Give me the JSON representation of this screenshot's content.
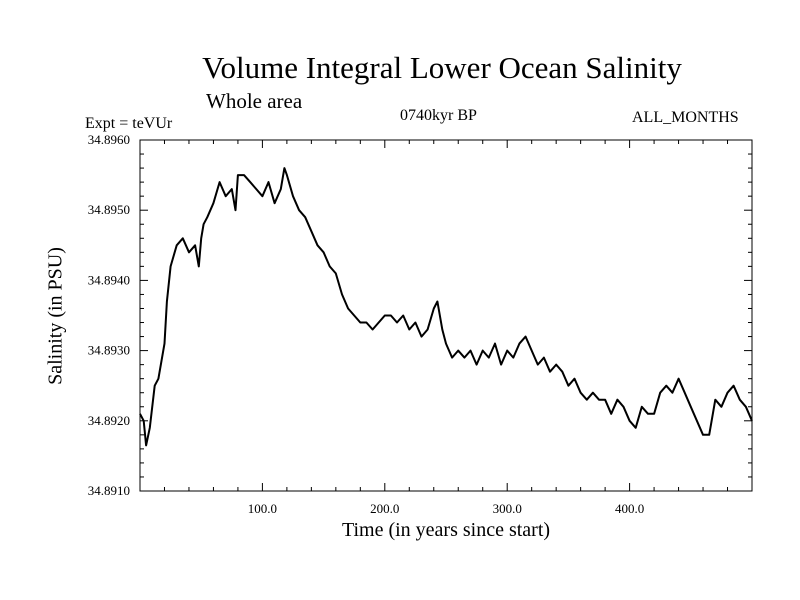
{
  "chart_data": {
    "type": "line",
    "title": "Volume Integral Lower Ocean Salinity",
    "subtitle": "Whole area",
    "annotations": {
      "experiment": "Expt = teVUr",
      "period": "0740kyr BP",
      "months": "ALL_MONTHS"
    },
    "xlabel": "Time (in years since start)",
    "ylabel": "Salinity (in PSU)",
    "xlim": [
      0,
      500
    ],
    "ylim": [
      34.891,
      34.896
    ],
    "xticks": [
      100,
      200,
      300,
      400
    ],
    "xtick_labels": [
      "100.0",
      "200.0",
      "300.0",
      "400.0"
    ],
    "yticks": [
      34.891,
      34.892,
      34.893,
      34.894,
      34.895,
      34.896
    ],
    "ytick_labels": [
      "34.8910",
      "34.8920",
      "34.8930",
      "34.8940",
      "34.8950",
      "34.8960"
    ],
    "grid": false,
    "series": [
      {
        "x": [
          0,
          3,
          5,
          8,
          12,
          15,
          20,
          22,
          25,
          30,
          35,
          40,
          45,
          48,
          50,
          52,
          55,
          60,
          65,
          70,
          75,
          78,
          80,
          85,
          90,
          95,
          100,
          105,
          110,
          115,
          118,
          120,
          125,
          130,
          135,
          140,
          145,
          150,
          155,
          160,
          165,
          170,
          175,
          180,
          185,
          190,
          195,
          200,
          205,
          210,
          215,
          220,
          225,
          230,
          235,
          240,
          243,
          247,
          250,
          255,
          260,
          265,
          270,
          275,
          280,
          285,
          290,
          295,
          300,
          305,
          310,
          315,
          320,
          325,
          330,
          335,
          340,
          345,
          350,
          355,
          360,
          365,
          370,
          375,
          380,
          385,
          390,
          395,
          400,
          405,
          410,
          415,
          420,
          425,
          430,
          435,
          440,
          445,
          450,
          455,
          460,
          465,
          470,
          475,
          480,
          485,
          490,
          495,
          500
        ],
        "y": [
          34.8921,
          34.892,
          34.89165,
          34.8919,
          34.8925,
          34.8926,
          34.8931,
          34.8937,
          34.8942,
          34.8945,
          34.8946,
          34.8944,
          34.8945,
          34.8942,
          34.8946,
          34.8948,
          34.8949,
          34.8951,
          34.8954,
          34.8952,
          34.8953,
          34.895,
          34.8955,
          34.8955,
          34.8954,
          34.8953,
          34.8952,
          34.8954,
          34.8951,
          34.8953,
          34.8956,
          34.8955,
          34.8952,
          34.895,
          34.8949,
          34.8947,
          34.8945,
          34.8944,
          34.8942,
          34.8941,
          34.8938,
          34.8936,
          34.8935,
          34.8934,
          34.8934,
          34.8933,
          34.8934,
          34.8935,
          34.8935,
          34.8934,
          34.8935,
          34.8933,
          34.8934,
          34.8932,
          34.8933,
          34.8936,
          34.8937,
          34.8933,
          34.8931,
          34.8929,
          34.893,
          34.8929,
          34.893,
          34.8928,
          34.893,
          34.8929,
          34.8931,
          34.8928,
          34.893,
          34.8929,
          34.8931,
          34.8932,
          34.893,
          34.8928,
          34.8929,
          34.8927,
          34.8928,
          34.8927,
          34.8925,
          34.8926,
          34.8924,
          34.8923,
          34.8924,
          34.8923,
          34.8923,
          34.8921,
          34.8923,
          34.8922,
          34.892,
          34.8919,
          34.8922,
          34.8921,
          34.8921,
          34.8924,
          34.8925,
          34.8924,
          34.8926,
          34.8924,
          34.8922,
          34.892,
          34.8918,
          34.8918,
          34.8923,
          34.8922,
          34.8924,
          34.8925,
          34.8923,
          34.8922,
          34.892
        ]
      }
    ]
  }
}
